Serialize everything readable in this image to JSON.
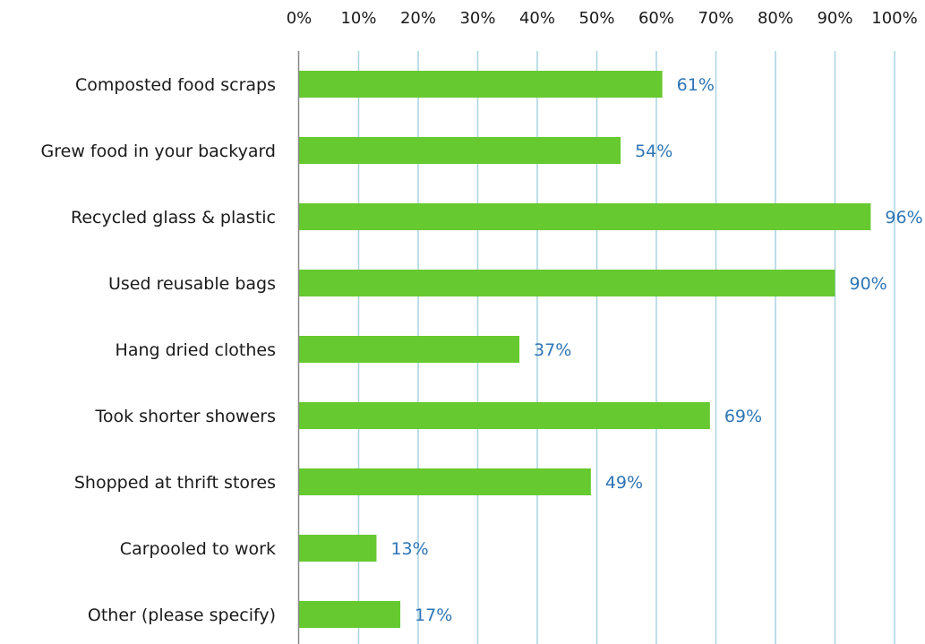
{
  "chart_data": {
    "type": "bar",
    "orientation": "horizontal",
    "title": "",
    "xlabel": "",
    "ylabel": "",
    "xlim": [
      0,
      100
    ],
    "x_ticks": [
      0,
      10,
      20,
      30,
      40,
      50,
      60,
      70,
      80,
      90,
      100
    ],
    "x_tick_labels": [
      "0%",
      "10%",
      "20%",
      "30%",
      "40%",
      "50%",
      "60%",
      "70%",
      "80%",
      "90%",
      "100%"
    ],
    "x_axis_position": "top",
    "grid": "vertical",
    "legend": "none",
    "categories": [
      "Composted food scraps",
      "Grew food in your backyard",
      "Recycled glass & plastic",
      "Used reusable bags",
      "Hang dried clothes",
      "Took shorter showers",
      "Shopped at thrift stores",
      "Carpooled to work",
      "Other (please specify)"
    ],
    "values": [
      61,
      54,
      96,
      90,
      37,
      69,
      49,
      13,
      17
    ],
    "data_labels": [
      "61%",
      "54%",
      "96%",
      "90%",
      "37%",
      "69%",
      "49%",
      "13%",
      "17%"
    ],
    "colors": {
      "bar": "#66c930",
      "data_label": "#2e75b6",
      "grid": "#a9d4e0",
      "axis": "#888888"
    }
  }
}
